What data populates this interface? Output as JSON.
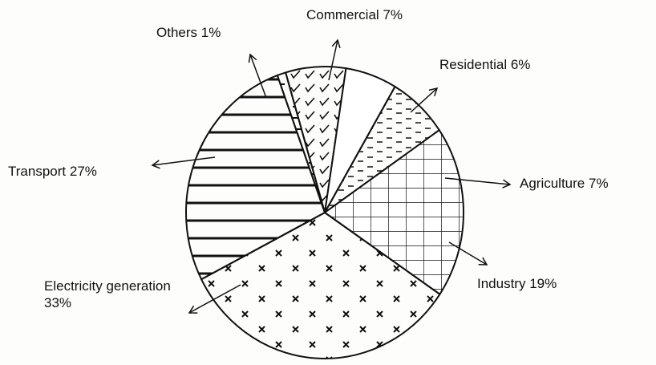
{
  "chart_data": {
    "type": "pie",
    "categories": [
      "Others",
      "Commercial",
      "Residential",
      "Agriculture",
      "Industry",
      "Electricity generation",
      "Transport"
    ],
    "values": [
      1,
      7,
      6,
      7,
      19,
      33,
      27
    ],
    "value_labels": [
      "1%",
      "7%",
      "6%",
      "7%",
      "19%",
      "33%",
      "27%"
    ]
  }
}
